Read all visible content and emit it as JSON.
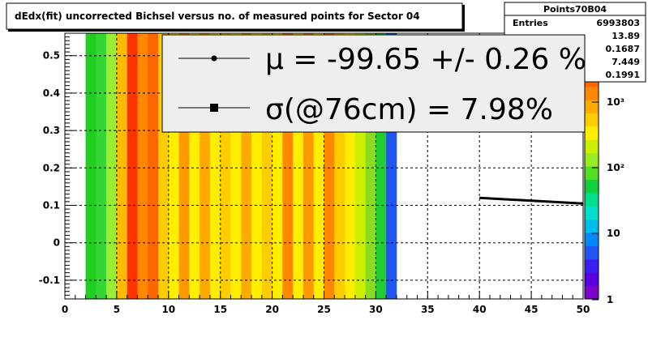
{
  "chart_data": {
    "type": "heatmap",
    "title": "dEdx(fit) uncorrected Bichsel versus no. of measured points for Sector 04",
    "xlabel": "",
    "ylabel": "",
    "xlim": [
      0,
      50
    ],
    "ylim": [
      -0.15,
      0.56
    ],
    "x_ticks": [
      {
        "v": 0,
        "label": "0"
      },
      {
        "v": 5,
        "label": "5"
      },
      {
        "v": 10,
        "label": "10"
      },
      {
        "v": 15,
        "label": "15"
      },
      {
        "v": 20,
        "label": "20"
      },
      {
        "v": 25,
        "label": "25"
      },
      {
        "v": 30,
        "label": "30"
      },
      {
        "v": 35,
        "label": "35"
      },
      {
        "v": 40,
        "label": "40"
      },
      {
        "v": 45,
        "label": "45"
      },
      {
        "v": 50,
        "label": "50"
      }
    ],
    "y_ticks": [
      {
        "v": -0.1,
        "label": "-0.1"
      },
      {
        "v": 0,
        "label": "0"
      },
      {
        "v": 0.1,
        "label": "0.1"
      },
      {
        "v": 0.2,
        "label": "0.2"
      },
      {
        "v": 0.3,
        "label": "0.3"
      },
      {
        "v": 0.4,
        "label": "0.4"
      },
      {
        "v": 0.5,
        "label": "0.5"
      }
    ],
    "grid": true,
    "columns": [
      {
        "x0": 2,
        "x1": 3,
        "color": "#22cc22"
      },
      {
        "x0": 3,
        "x1": 4,
        "color": "#33d633"
      },
      {
        "x0": 4,
        "x1": 5,
        "color": "#99ee33"
      },
      {
        "x0": 5,
        "x1": 6,
        "color": "#ffbb00"
      },
      {
        "x0": 6,
        "x1": 7,
        "color": "#ff3300"
      },
      {
        "x0": 7,
        "x1": 8,
        "color": "#ff8800"
      },
      {
        "x0": 8,
        "x1": 9,
        "color": "#ff6600"
      },
      {
        "x0": 9,
        "x1": 10,
        "color": "#ffcc00"
      },
      {
        "x0": 10,
        "x1": 11,
        "color": "#ffee00"
      },
      {
        "x0": 11,
        "x1": 12,
        "color": "#ff9900"
      },
      {
        "x0": 12,
        "x1": 13,
        "color": "#ffee00"
      },
      {
        "x0": 13,
        "x1": 14,
        "color": "#ffaa00"
      },
      {
        "x0": 14,
        "x1": 15,
        "color": "#ffee00"
      },
      {
        "x0": 15,
        "x1": 16,
        "color": "#ffcc00"
      },
      {
        "x0": 16,
        "x1": 17,
        "color": "#ffee00"
      },
      {
        "x0": 17,
        "x1": 18,
        "color": "#ffaa00"
      },
      {
        "x0": 18,
        "x1": 19,
        "color": "#ffee00"
      },
      {
        "x0": 19,
        "x1": 20,
        "color": "#ffcc00"
      },
      {
        "x0": 20,
        "x1": 21,
        "color": "#ffee00"
      },
      {
        "x0": 21,
        "x1": 22,
        "color": "#ff8800"
      },
      {
        "x0": 22,
        "x1": 23,
        "color": "#ffee00"
      },
      {
        "x0": 23,
        "x1": 24,
        "color": "#ff9900"
      },
      {
        "x0": 24,
        "x1": 25,
        "color": "#ffee00"
      },
      {
        "x0": 25,
        "x1": 26,
        "color": "#ff8800"
      },
      {
        "x0": 26,
        "x1": 27,
        "color": "#ffcc00"
      },
      {
        "x0": 27,
        "x1": 28,
        "color": "#ffee00"
      },
      {
        "x0": 28,
        "x1": 29,
        "color": "#ccee00"
      },
      {
        "x0": 29,
        "x1": 30,
        "color": "#88dd22"
      },
      {
        "x0": 30,
        "x1": 31,
        "color": "#22cc33"
      },
      {
        "x0": 31,
        "x1": 32,
        "color": "#2255ee"
      }
    ],
    "fit_line": {
      "x": [
        40,
        50
      ],
      "y": [
        0.12,
        0.105
      ]
    },
    "legend": {
      "entries": [
        {
          "marker": "circle",
          "text": "μ  = -99.65 +/-  0.26 %"
        },
        {
          "marker": "square",
          "text": "σ(@76cm) =  7.98%"
        }
      ]
    },
    "colorbar": {
      "scale": "log",
      "labels": [
        "1",
        "10",
        "10²",
        "10³"
      ],
      "colors": [
        "#7a00cc",
        "#5a00e0",
        "#3a1ff0",
        "#1f55f5",
        "#0088ff",
        "#00bbee",
        "#00ddcc",
        "#00e08a",
        "#10d040",
        "#55dd22",
        "#99ee22",
        "#ccee00",
        "#ffee00",
        "#ffcc00",
        "#ffaa00",
        "#ff8800",
        "#ff6600",
        "#ff4400",
        "#ff2200",
        "#ee0000"
      ]
    }
  },
  "stats_box": {
    "title": "Points70B04",
    "rows": [
      {
        "label": "Entries",
        "value": "6993803"
      },
      {
        "label": "",
        "value": "13.89"
      },
      {
        "label": "",
        "value": "0.1687"
      },
      {
        "label": "",
        "value": "7.449"
      },
      {
        "label": "",
        "value": "0.1991"
      }
    ]
  }
}
